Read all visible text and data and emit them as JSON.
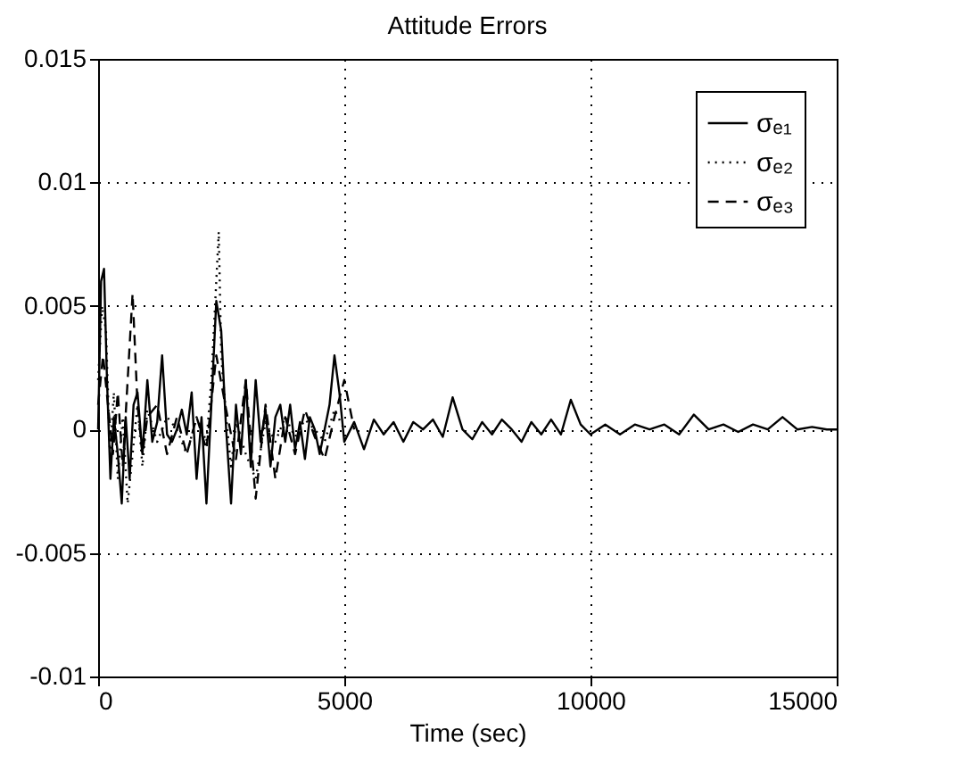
{
  "chart_data": {
    "type": "line",
    "title": "Attitude Errors",
    "xlabel": "Time (sec)",
    "xlim": [
      0,
      15000
    ],
    "xticks": [
      0,
      5000,
      10000,
      15000
    ],
    "ylim": [
      -0.01,
      0.015
    ],
    "yticks": [
      -0.01,
      -0.005,
      0,
      0.005,
      0.01,
      0.015
    ],
    "grid": true,
    "legend": "top right",
    "series": [
      {
        "name": "σₑ₁",
        "color": "#000000",
        "line_style": "solid",
        "x": [
          0,
          60,
          120,
          180,
          250,
          320,
          400,
          480,
          560,
          640,
          720,
          800,
          900,
          1000,
          1100,
          1200,
          1300,
          1400,
          1500,
          1600,
          1700,
          1800,
          1900,
          2000,
          2100,
          2200,
          2300,
          2400,
          2500,
          2600,
          2700,
          2800,
          2900,
          3000,
          3100,
          3200,
          3300,
          3400,
          3500,
          3600,
          3700,
          3800,
          3900,
          4000,
          4100,
          4200,
          4300,
          4400,
          4500,
          4600,
          4700,
          4800,
          4900,
          5000,
          5200,
          5400,
          5600,
          5800,
          6000,
          6200,
          6400,
          6600,
          6800,
          7000,
          7200,
          7400,
          7600,
          7800,
          8000,
          8200,
          8400,
          8600,
          8800,
          9000,
          9200,
          9400,
          9600,
          9800,
          10000,
          10300,
          10600,
          10900,
          11200,
          11500,
          11800,
          12100,
          12400,
          12700,
          13000,
          13300,
          13600,
          13900,
          14200,
          14500,
          14800,
          15000
        ],
        "values": [
          0,
          0.006,
          0.0065,
          0.002,
          -0.002,
          0.0005,
          -0.001,
          -0.003,
          0.0005,
          -0.002,
          0.001,
          0.0015,
          -0.001,
          0.002,
          -0.0005,
          0.0003,
          0.003,
          -0.0002,
          -0.0005,
          0,
          0.0008,
          -0.0002,
          0.0015,
          -0.002,
          0.0005,
          -0.003,
          0.001,
          0.0052,
          0.004,
          0,
          -0.003,
          0.001,
          -0.001,
          0.002,
          -0.0015,
          0.002,
          -0.0005,
          0.0008,
          -0.0015,
          0.0005,
          0.001,
          -0.0005,
          0.001,
          -0.0008,
          0.0003,
          -0.0012,
          0.0005,
          0,
          -0.001,
          0,
          0.001,
          0.003,
          0.0015,
          -0.0005,
          0.0003,
          -0.0008,
          0.0004,
          -0.0002,
          0.0003,
          -0.0005,
          0.0003,
          0,
          0.0004,
          -0.0003,
          0.0013,
          0,
          -0.0004,
          0.0003,
          -0.0002,
          0.0004,
          0,
          -0.0005,
          0.0003,
          -0.0002,
          0.0004,
          -0.0002,
          0.0012,
          0.0002,
          -0.0002,
          0.0002,
          -0.0002,
          0.0002,
          0,
          0.0002,
          -0.0002,
          0.0006,
          0,
          0.0002,
          -0.0001,
          0.0002,
          0,
          0.0005,
          0,
          0.0001,
          0,
          0
        ]
      },
      {
        "name": "σₑ₂",
        "color": "#000000",
        "line_style": "dotted",
        "x": [
          0,
          80,
          160,
          240,
          320,
          400,
          500,
          600,
          700,
          800,
          900,
          1000,
          1200,
          1400,
          1600,
          1800,
          2000,
          2200,
          2300,
          2400,
          2450,
          2500,
          2600,
          2700,
          2800,
          3000,
          3200,
          3400,
          3600,
          3800,
          4000,
          4200,
          4400,
          4600,
          4800,
          5000
        ],
        "values": [
          0.002,
          0.005,
          0.004,
          -0.001,
          0.0015,
          -0.002,
          0.0005,
          -0.003,
          -0.001,
          0.001,
          -0.0015,
          0.0008,
          -0.0005,
          0.0005,
          0,
          -0.001,
          0.0005,
          -0.0005,
          0.002,
          0.006,
          0.008,
          0.003,
          0.0005,
          -0.0015,
          0.0003,
          -0.001,
          -0.002,
          0.0003,
          -0.0005,
          0.0005,
          -0.0003,
          0.0004,
          0,
          -0.0005,
          0.0008,
          0
        ]
      },
      {
        "name": "σₑ₃",
        "color": "#000000",
        "line_style": "dashed",
        "x": [
          0,
          100,
          200,
          300,
          400,
          500,
          600,
          700,
          800,
          900,
          1000,
          1200,
          1400,
          1600,
          1800,
          2000,
          2200,
          2400,
          2600,
          2800,
          3000,
          3200,
          3400,
          3600,
          3800,
          4000,
          4200,
          4400,
          4600,
          4800,
          5000,
          5200
        ],
        "values": [
          0.001,
          0.003,
          0.001,
          -0.001,
          0.0015,
          -0.0015,
          0.002,
          0.0055,
          0.001,
          -0.001,
          0.0005,
          0.001,
          -0.001,
          0.0005,
          -0.001,
          0.0005,
          -0.0008,
          0.003,
          0.0008,
          -0.0012,
          0.002,
          -0.0028,
          0.001,
          -0.002,
          0.0005,
          -0.001,
          0.0008,
          -0.0003,
          -0.0012,
          0.0005,
          0.002,
          0
        ]
      }
    ]
  }
}
